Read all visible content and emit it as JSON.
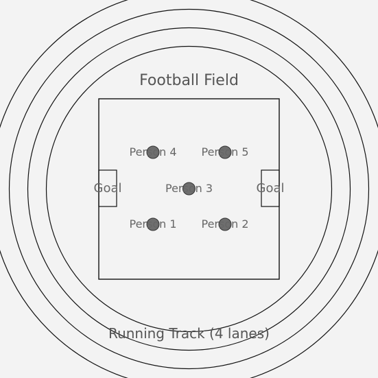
{
  "diagram": {
    "field_title": "Football Field",
    "track_label": "Running Track (4 lanes)",
    "lane_count": 4,
    "goal_left_label": "Goal",
    "goal_right_label": "Goal",
    "people": [
      {
        "label": "Person 1"
      },
      {
        "label": "Person 2"
      },
      {
        "label": "Person 3"
      },
      {
        "label": "Person 4"
      },
      {
        "label": "Person 5"
      }
    ],
    "colors": {
      "background": "#f3f3f3",
      "line": "#111111",
      "marker_fill": "#6e6e6e",
      "text": "#555555"
    }
  }
}
